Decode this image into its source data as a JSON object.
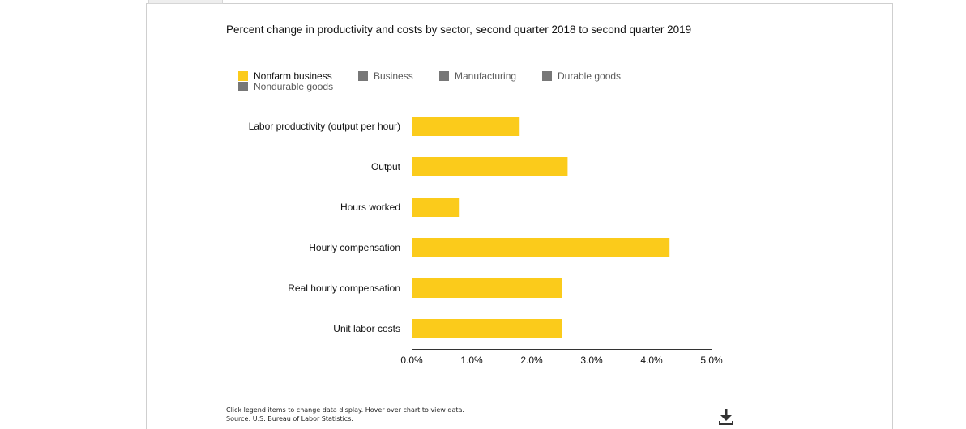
{
  "chart": {
    "title": "Percent change in productivity and costs by sector, second quarter 2018 to second quarter 2019",
    "footnote_line1": "Click legend items to change data display. Hover over chart to view data.",
    "footnote_line2": "Source: U.S. Bureau of Labor Statistics.",
    "download_icon": "download-icon"
  },
  "legend": [
    {
      "label": "Nonfarm business",
      "color": "#fbcb1b",
      "active": true
    },
    {
      "label": "Business",
      "color": "#777777",
      "active": false
    },
    {
      "label": "Manufacturing",
      "color": "#777777",
      "active": false
    },
    {
      "label": "Durable goods",
      "color": "#777777",
      "active": false
    },
    {
      "label": "Nondurable goods",
      "color": "#777777",
      "active": false
    }
  ],
  "chart_data": {
    "type": "bar",
    "orientation": "horizontal",
    "title": "Percent change in productivity and costs by sector, second quarter 2018 to second quarter 2019",
    "categories": [
      "Labor productivity (output per hour)",
      "Output",
      "Hours worked",
      "Hourly compensation",
      "Real hourly compensation",
      "Unit labor costs"
    ],
    "series": [
      {
        "name": "Nonfarm business",
        "color": "#fbcb1b",
        "values": [
          1.8,
          2.6,
          0.8,
          4.3,
          2.5,
          2.5
        ]
      }
    ],
    "xlim": [
      0,
      5
    ],
    "xticks": [
      "0.0%",
      "1.0%",
      "2.0%",
      "3.0%",
      "4.0%",
      "5.0%"
    ],
    "grid": true,
    "legend_position": "top-left",
    "source": "U.S. Bureau of Labor Statistics"
  }
}
